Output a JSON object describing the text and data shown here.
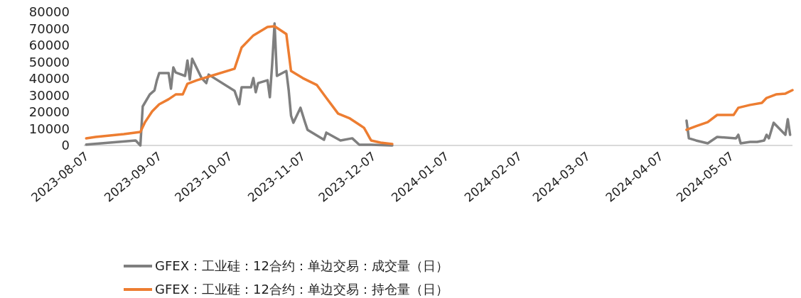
{
  "chart_data": {
    "type": "line",
    "xlim": [
      "2023-08-07",
      "2024-06-03"
    ],
    "xticks": [
      "2023-08-07",
      "2023-09-07",
      "2023-10-07",
      "2023-11-07",
      "2023-12-07",
      "2024-01-07",
      "2024-02-07",
      "2024-03-07",
      "2024-04-07",
      "2024-05-07"
    ],
    "ylim": [
      0,
      80000
    ],
    "yticks": [
      0,
      10000,
      20000,
      30000,
      40000,
      50000,
      60000,
      70000,
      80000
    ],
    "grid": false,
    "legend": "bottom",
    "line_style": "solid",
    "series": [
      {
        "name": "GFEX：工业硅：12合约：单边交易：成交量（日）",
        "color": "#7f7f7f",
        "x": [
          "2023-08-08",
          "2023-08-29",
          "2023-08-31",
          "2023-09-01",
          "2023-09-04",
          "2023-09-06",
          "2023-09-07",
          "2023-09-08",
          "2023-09-12",
          "2023-09-13",
          "2023-09-14",
          "2023-09-15",
          "2023-09-19",
          "2023-09-20",
          "2023-09-21",
          "2023-09-22",
          "2023-09-26",
          "2023-09-28",
          "2023-09-29",
          "2023-10-10",
          "2023-10-12",
          "2023-10-13",
          "2023-10-17",
          "2023-10-18",
          "2023-10-19",
          "2023-10-20",
          "2023-10-24",
          "2023-10-25",
          "2023-10-26",
          "2023-10-27",
          "2023-10-28",
          "2023-11-01",
          "2023-11-02",
          "2023-11-03",
          "2023-11-04",
          "2023-11-07",
          "2023-11-09",
          "2023-11-10",
          "2023-11-17",
          "2023-11-18",
          "2023-11-24",
          "2023-11-29",
          "2023-12-02",
          "2023-12-07",
          "2023-12-16",
          "2024-01-15",
          "2024-04-19",
          "2024-04-20",
          "2024-04-23",
          "2024-04-28",
          "2024-05-02",
          "2024-05-10",
          "2024-05-11",
          "2024-05-12",
          "2024-05-16",
          "2024-05-19",
          "2024-05-22",
          "2024-05-23",
          "2024-05-24",
          "2024-05-26",
          "2024-05-31",
          "2024-06-01",
          "2024-06-02"
        ],
        "values": [
          500,
          3000,
          0,
          23400,
          30600,
          33000,
          39000,
          43400,
          43400,
          34000,
          46800,
          43800,
          41700,
          51000,
          39600,
          52000,
          40400,
          37400,
          42500,
          32800,
          24700,
          34900,
          34900,
          40400,
          31900,
          37400,
          39100,
          28900,
          48900,
          73200,
          41700,
          44700,
          33200,
          17900,
          13600,
          22600,
          13600,
          9400,
          3400,
          7700,
          3000,
          4300,
          400,
          400,
          0,
          null,
          14900,
          4300,
          3000,
          1300,
          5100,
          4300,
          6400,
          1300,
          2100,
          2100,
          3000,
          6400,
          4300,
          13600,
          6400,
          15700,
          6400
        ]
      },
      {
        "name": "GFEX：工业硅：12合约：单边交易：持仓量（日）",
        "color": "#ed7d31",
        "x": [
          "2023-08-08",
          "2023-08-12",
          "2023-08-18",
          "2023-08-24",
          "2023-08-31",
          "2023-09-02",
          "2023-09-05",
          "2023-09-08",
          "2023-09-12",
          "2023-09-15",
          "2023-09-18",
          "2023-09-20",
          "2023-09-24",
          "2023-09-30",
          "2023-10-10",
          "2023-10-13",
          "2023-10-18",
          "2023-10-24",
          "2023-10-27",
          "2023-11-01",
          "2023-11-03",
          "2023-11-08",
          "2023-11-14",
          "2023-11-18",
          "2023-11-23",
          "2023-11-28",
          "2023-12-04",
          "2023-12-07",
          "2023-12-11",
          "2023-12-16",
          "2024-01-15",
          "2024-04-19",
          "2024-04-23",
          "2024-04-28",
          "2024-05-02",
          "2024-05-09",
          "2024-05-11",
          "2024-05-16",
          "2024-05-21",
          "2024-05-23",
          "2024-05-27",
          "2024-05-31",
          "2024-06-03"
        ],
        "values": [
          4300,
          5100,
          6000,
          6800,
          8100,
          14000,
          20400,
          24700,
          27700,
          30600,
          30600,
          37000,
          39100,
          41700,
          46000,
          58700,
          66000,
          71100,
          71500,
          66800,
          44700,
          40400,
          36200,
          28500,
          19100,
          16200,
          10600,
          3000,
          1700,
          900,
          null,
          9400,
          11500,
          14000,
          18300,
          18300,
          22600,
          24300,
          25500,
          28500,
          30600,
          31100,
          33200
        ]
      }
    ]
  }
}
